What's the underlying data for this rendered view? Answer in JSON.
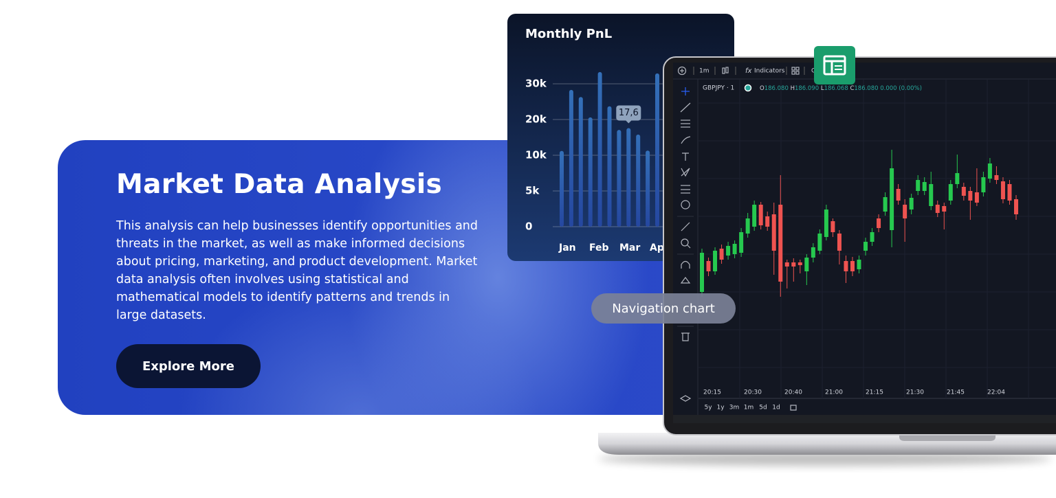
{
  "hero": {
    "title": "Market Data Analysis",
    "paragraph": "This analysis can help businesses identify opportunities and threats in the market, as well as make informed decisions about pricing, marketing, and product development. Market data analysis often involves using statistical and mathematical models to identify patterns and trends in large datasets.",
    "button": "Explore More"
  },
  "pnl": {
    "type": "bar",
    "title": "Monthly PnL",
    "yticks": [
      {
        "value": 30000,
        "label": "30k"
      },
      {
        "value": 20000,
        "label": "20k"
      },
      {
        "value": 10000,
        "label": "10k"
      },
      {
        "value": 5000,
        "label": "5k"
      },
      {
        "value": 0,
        "label": "0"
      }
    ],
    "categories": [
      "Jan",
      "Feb",
      "Mar",
      "Apr"
    ],
    "values": [
      11200,
      28300,
      26300,
      20600,
      33300,
      23700,
      17100,
      17600,
      15800,
      11300,
      32900
    ],
    "value_labels": [
      null,
      null,
      null,
      null,
      null,
      null,
      null,
      "17,6",
      null,
      null,
      null
    ]
  },
  "trading": {
    "toolbar": [
      "1m",
      "Indicators",
      "G"
    ],
    "symbol": "GBPJPY · 1",
    "ohlc": [
      {
        "label": "O",
        "value": "186.080"
      },
      {
        "label": "H",
        "value": "186.090"
      },
      {
        "label": "L",
        "value": "186.068"
      },
      {
        "label": "C",
        "value": "186.080"
      }
    ],
    "change": "0.000 (0.00%)",
    "times": [
      "20:15",
      "20:30",
      "20:40",
      "21:00",
      "21:15",
      "21:30",
      "21:45",
      "22:04"
    ],
    "ranges": [
      "5y",
      "1y",
      "3m",
      "1m",
      "5d",
      "1d"
    ],
    "candles": [
      [
        186.0075,
        186.0138,
        186.0068,
        186.0132
      ],
      [
        186.012,
        186.0125,
        186.0098,
        186.0105
      ],
      [
        186.0105,
        186.014,
        186.01,
        186.0135
      ],
      [
        186.0138,
        186.0144,
        186.0116,
        186.0122
      ],
      [
        186.0128,
        186.0148,
        186.0122,
        186.0142
      ],
      [
        186.013,
        186.015,
        186.0124,
        186.0145
      ],
      [
        186.0132,
        186.0168,
        186.0126,
        186.0162
      ],
      [
        186.016,
        186.019,
        186.0154,
        186.0182
      ],
      [
        186.017,
        186.0208,
        186.0164,
        186.0202
      ],
      [
        186.0202,
        186.0206,
        186.0166,
        186.0172
      ],
      [
        186.0185,
        186.0192,
        186.0164,
        186.017
      ],
      [
        186.0188,
        186.0205,
        186.01,
        186.0135
      ],
      [
        186.0202,
        186.0245,
        186.0068,
        186.009
      ],
      [
        186.0118,
        186.0122,
        186.008,
        186.0112
      ],
      [
        186.0118,
        186.0124,
        186.009,
        186.0112
      ],
      [
        186.0118,
        186.0122,
        186.0102,
        186.0114
      ],
      [
        186.0105,
        186.013,
        186.0085,
        186.0125
      ],
      [
        186.0125,
        186.0146,
        186.0118,
        186.014
      ],
      [
        186.0135,
        186.0166,
        186.013,
        186.016
      ],
      [
        186.0155,
        186.0202,
        186.015,
        186.0195
      ],
      [
        186.0178,
        186.0182,
        186.0155,
        186.0162
      ],
      [
        186.016,
        186.0165,
        186.0115,
        186.0135
      ],
      [
        186.012,
        186.0128,
        186.0088,
        186.0105
      ],
      [
        186.012,
        186.0126,
        186.0098,
        186.0105
      ],
      [
        186.0108,
        186.0128,
        186.0102,
        186.0122
      ],
      [
        186.0135,
        186.0154,
        186.0128,
        186.0148
      ],
      [
        186.0148,
        186.0168,
        186.0142,
        186.0162
      ],
      [
        186.0182,
        186.0188,
        186.0162,
        186.0168
      ],
      [
        186.0192,
        186.022,
        186.0186,
        186.0213
      ],
      [
        186.0165,
        186.0282,
        186.014,
        186.0255
      ],
      [
        186.0225,
        186.0232,
        186.0202,
        186.0208
      ],
      [
        186.0202,
        186.021,
        186.0148,
        186.0182
      ],
      [
        186.0195,
        186.0218,
        186.0188,
        186.0212
      ],
      [
        186.0222,
        186.0245,
        186.0216,
        186.0238
      ],
      [
        186.0222,
        186.0242,
        186.0216,
        186.0235
      ],
      [
        186.02,
        186.025,
        186.0194,
        186.0232
      ],
      [
        186.0202,
        186.0208,
        186.0184,
        186.019
      ],
      [
        186.02,
        186.0205,
        186.0166,
        186.0192
      ],
      [
        186.0208,
        186.0238,
        186.0202,
        186.0232
      ],
      [
        186.0232,
        186.0275,
        186.0226,
        186.0248
      ],
      [
        186.0228,
        186.0234,
        186.0208,
        186.0215
      ],
      [
        186.0222,
        186.0228,
        186.018,
        186.0208
      ],
      [
        186.022,
        186.0255,
        186.02,
        186.0205
      ],
      [
        186.022,
        186.025,
        186.0214,
        186.0242
      ],
      [
        186.024,
        186.027,
        186.0234,
        186.0262
      ],
      [
        186.0245,
        186.0258,
        186.0232,
        186.0238
      ],
      [
        186.0236,
        186.0242,
        186.0204,
        186.021
      ],
      [
        186.0232,
        186.0238,
        186.0202,
        186.0208
      ],
      [
        186.021,
        186.0216,
        186.018,
        186.0188
      ]
    ],
    "badge": "Navigation chart"
  }
}
